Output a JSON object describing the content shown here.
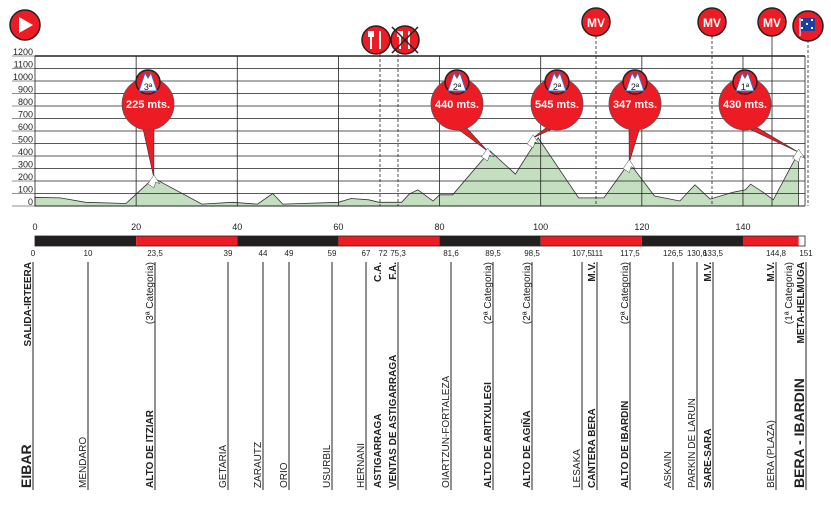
{
  "colors": {
    "accent_red": "#ed1c24",
    "terrain_fill": "#c3dfbf",
    "bar_black": "#231f20",
    "flag_blue": "#1f3f9e"
  },
  "chart_data": {
    "type": "area",
    "xlabel": "",
    "ylabel": "",
    "xlim": [
      0,
      151
    ],
    "ylim": [
      0,
      1200
    ],
    "grid": true,
    "y_ticks": [
      0,
      100,
      200,
      300,
      400,
      500,
      600,
      700,
      800,
      900,
      1000,
      1100,
      1200
    ],
    "x_ticks": [
      0,
      20,
      40,
      60,
      80,
      100,
      120,
      140
    ],
    "profile": [
      [
        0,
        70
      ],
      [
        5,
        65
      ],
      [
        10,
        30
      ],
      [
        18,
        20
      ],
      [
        23.5,
        225
      ],
      [
        25,
        190
      ],
      [
        33,
        15
      ],
      [
        39,
        30
      ],
      [
        44,
        15
      ],
      [
        47,
        100
      ],
      [
        49,
        15
      ],
      [
        60,
        30
      ],
      [
        62.5,
        60
      ],
      [
        66,
        50
      ],
      [
        68,
        30
      ],
      [
        72.5,
        30
      ],
      [
        74,
        95
      ],
      [
        75.7,
        130
      ],
      [
        78.7,
        40
      ],
      [
        80,
        90
      ],
      [
        82.6,
        90
      ],
      [
        90,
        440
      ],
      [
        95,
        255
      ],
      [
        99.5,
        545
      ],
      [
        107.5,
        65
      ],
      [
        112.5,
        65
      ],
      [
        117.5,
        347
      ],
      [
        122.5,
        80
      ],
      [
        127.5,
        40
      ],
      [
        130.5,
        170
      ],
      [
        133.5,
        55
      ],
      [
        138,
        110
      ],
      [
        140.5,
        130
      ],
      [
        141.5,
        175
      ],
      [
        144,
        110
      ],
      [
        146,
        50
      ],
      [
        151,
        430
      ]
    ],
    "climbs": [
      {
        "km": 23.5,
        "elev": 225,
        "category": "3ª",
        "label": "225 mts."
      },
      {
        "km": 89.5,
        "elev": 440,
        "category": "2ª",
        "label": "440 mts."
      },
      {
        "km": 98.5,
        "elev": 545,
        "category": "2ª",
        "label": "545 mts."
      },
      {
        "km": 117.5,
        "elev": 347,
        "category": "2ª",
        "label": "347 mts."
      },
      {
        "km": 151,
        "elev": 430,
        "category": "1ª",
        "label": "430 mts."
      }
    ],
    "km_bar_segments": [
      {
        "from": 0,
        "to": 20,
        "color": "#231f20"
      },
      {
        "from": 20,
        "to": 40,
        "color": "#ed1c24"
      },
      {
        "from": 40,
        "to": 60,
        "color": "#231f20"
      },
      {
        "from": 60,
        "to": 80,
        "color": "#ed1c24"
      },
      {
        "from": 80,
        "to": 100,
        "color": "#231f20"
      },
      {
        "from": 100,
        "to": 120,
        "color": "#ed1c24"
      },
      {
        "from": 120,
        "to": 140,
        "color": "#231f20"
      },
      {
        "from": 140,
        "to": 151,
        "color": "#ed1c24"
      }
    ]
  },
  "top_icons": [
    {
      "icon": "start-play-icon"
    },
    {
      "icon": "feed-zone-icon"
    },
    {
      "icon": "end-feed-zone-icon"
    },
    {
      "icon": "mv-icon",
      "text": "MV"
    },
    {
      "icon": "mv-icon",
      "text": "MV"
    },
    {
      "icon": "mv-icon",
      "text": "MV"
    },
    {
      "icon": "finish-flag-icon"
    }
  ],
  "waypoints": [
    {
      "km": "0",
      "name": "EIBAR",
      "bold": true,
      "large": true,
      "top": [
        "SALIDA-IRTEERA"
      ]
    },
    {
      "km": "10",
      "name": "MENDARO"
    },
    {
      "km": "23,5",
      "name": "ALTO DE ITZIAR",
      "bold": true,
      "top": [
        "(3ª Categoria)"
      ]
    },
    {
      "km": "39",
      "name": "GETARIA"
    },
    {
      "km": "44",
      "name": "ZARAUTZ"
    },
    {
      "km": "49",
      "name": "ORIO"
    },
    {
      "km": "59",
      "name": "USURBIL"
    },
    {
      "km": "67",
      "name": "HERNANI"
    },
    {
      "km": "72",
      "name": "ASTIGARRAGA",
      "bold": true,
      "top": [
        "C.A."
      ]
    },
    {
      "km": "75,3",
      "name": "VENTAS DE ASTIGARRAGA",
      "bold": true,
      "top": [
        "F.A."
      ]
    },
    {
      "km": "81,6",
      "name": "OIARTZUN-FORTALEZA"
    },
    {
      "km": "89,5",
      "name": "ALTO DE ARITXULEGI",
      "bold": true,
      "top": [
        "(2ª Categoria)"
      ]
    },
    {
      "km": "98,5",
      "name": "ALTO DE AGIÑA",
      "bold": true,
      "top": [
        "(2ª Categoria)"
      ]
    },
    {
      "km": "107,5",
      "name": "LESAKA"
    },
    {
      "km": "111",
      "name": "CANTERA BERA",
      "bold": true,
      "top": [
        "M.V."
      ]
    },
    {
      "km": "117,5",
      "name": "ALTO DE IBARDIN",
      "bold": true,
      "top": [
        "(2ª Categoria)"
      ]
    },
    {
      "km": "126,5",
      "name": "ASKAIN"
    },
    {
      "km": "130,6",
      "name": "PARKIN DE LARUN"
    },
    {
      "km": "133,5",
      "name": "SARE-SARA",
      "bold": true,
      "top": [
        "M.V."
      ]
    },
    {
      "km": "144,8",
      "name": "BERA (PLAZA)",
      "top": [
        "M.V."
      ]
    },
    {
      "km": "151",
      "name": "BERA - IBARDIN",
      "bold": true,
      "large": true,
      "top": [
        "META-HELMUGA",
        "(1ª Categoria)"
      ]
    }
  ]
}
